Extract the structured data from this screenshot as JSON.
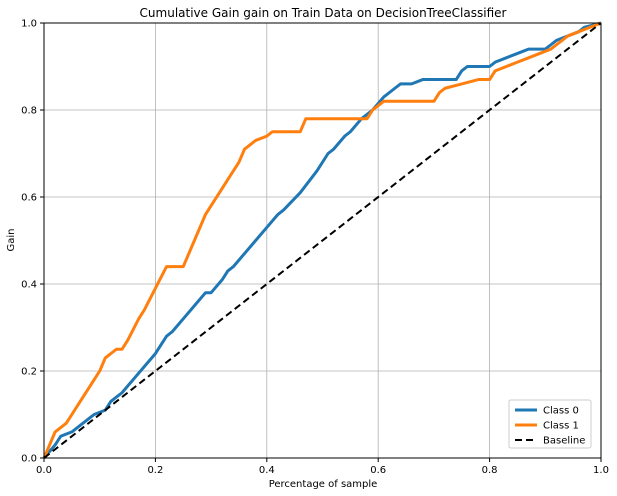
{
  "chart_data": {
    "type": "line",
    "title": "Cumulative Gain gain on Train Data on DecisionTreeClassifier",
    "xlabel": "Percentage of sample",
    "ylabel": "Gain",
    "xlim": [
      0.0,
      1.0
    ],
    "ylim": [
      0.0,
      1.0
    ],
    "xticks": [
      "0.0",
      "0.2",
      "0.4",
      "0.6",
      "0.8",
      "1.0"
    ],
    "yticks": [
      "0.0",
      "0.2",
      "0.4",
      "0.6",
      "0.8",
      "1.0"
    ],
    "grid": true,
    "legend_position": "lower-right",
    "series": [
      {
        "name": "Class 0",
        "color": "#1f77b4",
        "dash": "solid",
        "points": [
          [
            0.0,
            0.0
          ],
          [
            0.02,
            0.03
          ],
          [
            0.03,
            0.05
          ],
          [
            0.05,
            0.06
          ],
          [
            0.06,
            0.07
          ],
          [
            0.07,
            0.08
          ],
          [
            0.08,
            0.09
          ],
          [
            0.09,
            0.1
          ],
          [
            0.11,
            0.11
          ],
          [
            0.12,
            0.13
          ],
          [
            0.13,
            0.14
          ],
          [
            0.14,
            0.15
          ],
          [
            0.16,
            0.18
          ],
          [
            0.18,
            0.21
          ],
          [
            0.2,
            0.24
          ],
          [
            0.22,
            0.28
          ],
          [
            0.23,
            0.29
          ],
          [
            0.25,
            0.32
          ],
          [
            0.27,
            0.35
          ],
          [
            0.29,
            0.38
          ],
          [
            0.3,
            0.38
          ],
          [
            0.32,
            0.41
          ],
          [
            0.33,
            0.43
          ],
          [
            0.34,
            0.44
          ],
          [
            0.36,
            0.47
          ],
          [
            0.38,
            0.5
          ],
          [
            0.4,
            0.53
          ],
          [
            0.42,
            0.56
          ],
          [
            0.43,
            0.57
          ],
          [
            0.46,
            0.61
          ],
          [
            0.49,
            0.66
          ],
          [
            0.51,
            0.7
          ],
          [
            0.52,
            0.71
          ],
          [
            0.54,
            0.74
          ],
          [
            0.55,
            0.75
          ],
          [
            0.57,
            0.78
          ],
          [
            0.59,
            0.8
          ],
          [
            0.61,
            0.83
          ],
          [
            0.63,
            0.85
          ],
          [
            0.64,
            0.86
          ],
          [
            0.66,
            0.86
          ],
          [
            0.68,
            0.87
          ],
          [
            0.74,
            0.87
          ],
          [
            0.75,
            0.89
          ],
          [
            0.76,
            0.9
          ],
          [
            0.8,
            0.9
          ],
          [
            0.81,
            0.91
          ],
          [
            0.83,
            0.92
          ],
          [
            0.85,
            0.93
          ],
          [
            0.87,
            0.94
          ],
          [
            0.9,
            0.94
          ],
          [
            0.91,
            0.95
          ],
          [
            0.92,
            0.96
          ],
          [
            0.94,
            0.97
          ],
          [
            0.96,
            0.98
          ],
          [
            0.97,
            0.99
          ],
          [
            1.0,
            1.0
          ]
        ]
      },
      {
        "name": "Class 1",
        "color": "#ff7f0e",
        "dash": "solid",
        "points": [
          [
            0.0,
            0.0
          ],
          [
            0.01,
            0.03
          ],
          [
            0.02,
            0.06
          ],
          [
            0.03,
            0.07
          ],
          [
            0.04,
            0.08
          ],
          [
            0.05,
            0.1
          ],
          [
            0.06,
            0.12
          ],
          [
            0.07,
            0.14
          ],
          [
            0.08,
            0.16
          ],
          [
            0.09,
            0.18
          ],
          [
            0.1,
            0.2
          ],
          [
            0.11,
            0.23
          ],
          [
            0.12,
            0.24
          ],
          [
            0.13,
            0.25
          ],
          [
            0.14,
            0.25
          ],
          [
            0.15,
            0.27
          ],
          [
            0.17,
            0.32
          ],
          [
            0.18,
            0.34
          ],
          [
            0.2,
            0.39
          ],
          [
            0.22,
            0.44
          ],
          [
            0.25,
            0.44
          ],
          [
            0.27,
            0.5
          ],
          [
            0.29,
            0.56
          ],
          [
            0.3,
            0.58
          ],
          [
            0.32,
            0.62
          ],
          [
            0.33,
            0.64
          ],
          [
            0.35,
            0.68
          ],
          [
            0.36,
            0.71
          ],
          [
            0.37,
            0.72
          ],
          [
            0.38,
            0.73
          ],
          [
            0.4,
            0.74
          ],
          [
            0.41,
            0.75
          ],
          [
            0.46,
            0.75
          ],
          [
            0.47,
            0.78
          ],
          [
            0.58,
            0.78
          ],
          [
            0.59,
            0.8
          ],
          [
            0.61,
            0.82
          ],
          [
            0.7,
            0.82
          ],
          [
            0.71,
            0.84
          ],
          [
            0.72,
            0.85
          ],
          [
            0.75,
            0.86
          ],
          [
            0.78,
            0.87
          ],
          [
            0.8,
            0.87
          ],
          [
            0.81,
            0.89
          ],
          [
            0.83,
            0.9
          ],
          [
            0.85,
            0.91
          ],
          [
            0.87,
            0.92
          ],
          [
            0.89,
            0.93
          ],
          [
            0.91,
            0.94
          ],
          [
            0.92,
            0.95
          ],
          [
            0.93,
            0.96
          ],
          [
            0.94,
            0.97
          ],
          [
            0.96,
            0.98
          ],
          [
            0.98,
            0.99
          ],
          [
            1.0,
            1.0
          ]
        ]
      },
      {
        "name": "Baseline",
        "color": "#000000",
        "dash": "dashed",
        "points": [
          [
            0.0,
            0.0
          ],
          [
            1.0,
            1.0
          ]
        ]
      }
    ]
  }
}
